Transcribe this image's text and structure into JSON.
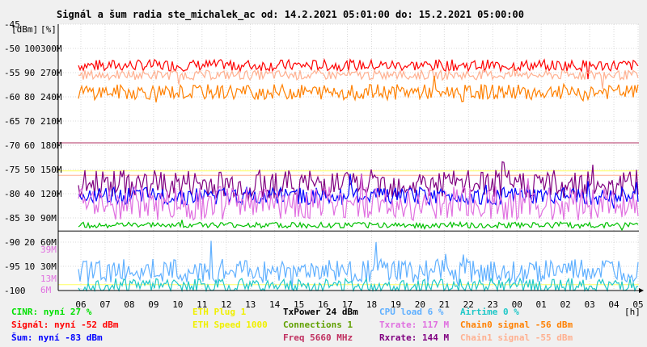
{
  "chart_data": {
    "type": "line",
    "title": "Signál a šum radia ste_michalek_ac od: 14.2.2021 05:01:00 do: 15.2.2021 05:00:00",
    "y_unit_labels": [
      "[dBm]",
      "[%]"
    ],
    "x_unit": "[h]",
    "x_ticks": [
      "06",
      "07",
      "08",
      "09",
      "10",
      "11",
      "12",
      "13",
      "14",
      "15",
      "16",
      "17",
      "18",
      "19",
      "20",
      "21",
      "22",
      "23",
      "00",
      "01",
      "02",
      "03",
      "04",
      "05"
    ],
    "y_left_dbm": [
      "-45",
      "-50",
      "-55",
      "-60",
      "-65",
      "-70",
      "-75",
      "-80",
      "-85",
      "-90",
      "-95",
      "-100"
    ],
    "y_percent": [
      "100",
      "90",
      "80",
      "70",
      "60",
      "50",
      "40",
      "30",
      "20",
      "10"
    ],
    "y_rate": [
      "300M",
      "270M",
      "240M",
      "210M",
      "180M",
      "150M",
      "120M",
      "90M",
      "60M",
      "30M"
    ],
    "y_ylim_dbm": [
      -100,
      -45
    ],
    "inner_markers": [
      "39M",
      "13M",
      "6M"
    ],
    "series": [
      {
        "name": "Signál",
        "color": "#ff0000",
        "level_dbm": -53.5
      },
      {
        "name": "Chain1 signal",
        "color": "#ffb090",
        "level_dbm": -55.5
      },
      {
        "name": "Chain0 signal",
        "color": "#ff8000",
        "level_dbm": -59
      },
      {
        "name": "Rxrate",
        "color": "#800080",
        "level_dbm": -78
      },
      {
        "name": "Šum",
        "color": "#0000ff",
        "level_dbm": -80.5
      },
      {
        "name": "Txrate",
        "color": "#e070e0",
        "level_dbm": -82
      },
      {
        "name": "Connections",
        "color": "#00c000",
        "level_dbm": -86.5
      },
      {
        "name": "CPU load",
        "color": "#60b0ff",
        "level_dbm": -96
      },
      {
        "name": "Airtime",
        "color": "#20c8c8",
        "level_dbm": -99
      }
    ],
    "reference_lines": [
      {
        "color": "#b03060",
        "level_dbm": -69.5
      },
      {
        "color": "#ffff60",
        "level_dbm": -75.3
      },
      {
        "color": "#ffb090",
        "level_dbm": -76.2
      },
      {
        "color": "#000000",
        "level_dbm": -87.7
      },
      {
        "color": "#ffff60",
        "level_dbm": -98.8
      }
    ],
    "legend": [
      [
        {
          "text": "CINR: nyní 27 %",
          "color": "#00e000"
        },
        {
          "text": "Signál: nyní -52 dBm",
          "color": "#ff0000"
        },
        {
          "text": "Šum: nyní -83 dBm",
          "color": "#0000ff"
        }
      ],
      [
        {
          "text": "ETH Plug 1",
          "color": "#f0f000"
        },
        {
          "text": "ETH Speed 1000",
          "color": "#f0f000"
        }
      ],
      [
        {
          "text": "TxPower 24 dBm",
          "color": "#000000"
        },
        {
          "text": "Connections 1",
          "color": "#60a000"
        },
        {
          "text": "Freq 5660 MHz",
          "color": "#c03060"
        }
      ],
      [
        {
          "text": "CPU load 6 %",
          "color": "#60b0ff"
        },
        {
          "text": "Txrate: 117 M",
          "color": "#e070e0"
        },
        {
          "text": "Rxrate: 144 M",
          "color": "#800080"
        }
      ],
      [
        {
          "text": "Airtime 0 %",
          "color": "#20c8c8"
        },
        {
          "text": "Chain0 signal -56 dBm",
          "color": "#ff8000"
        },
        {
          "text": "Chain1 signal -55 dBm",
          "color": "#ffb090"
        }
      ]
    ]
  }
}
